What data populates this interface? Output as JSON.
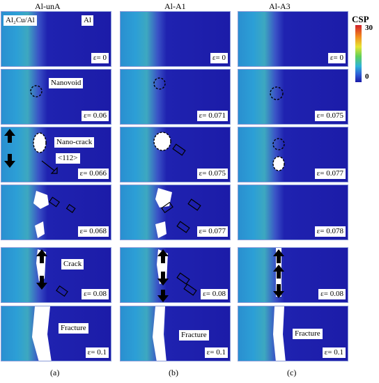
{
  "columns": [
    {
      "title": "Al-unA",
      "sub": "(a)"
    },
    {
      "title": "Al-A1",
      "sub": "(b)"
    },
    {
      "title": "Al-A3",
      "sub": "(c)"
    }
  ],
  "legend": {
    "title": "CSP",
    "max": "30",
    "min": "0"
  },
  "panels": {
    "a": [
      "ε= 0",
      "ε= 0.06",
      "ε= 0.066",
      "ε= 0.068",
      "ε= 0.08",
      "ε= 0.1"
    ],
    "b": [
      "ε= 0",
      "ε= 0.071",
      "ε= 0.075",
      "ε= 0.077",
      "ε= 0.08",
      "ε= 0.1"
    ],
    "c": [
      "ε= 0",
      "ε= 0.075",
      "ε= 0.077",
      "ε= 0.078",
      "ε= 0.08",
      "ε= 0.1"
    ]
  },
  "labels": {
    "al2cu": "Al₂Cu/Al",
    "al": "Al",
    "nanovoid": "Nanovoid",
    "nanocrack": "Nano-crack",
    "direction": "<112>",
    "crack": "Crack",
    "fracture": "Fracture"
  }
}
